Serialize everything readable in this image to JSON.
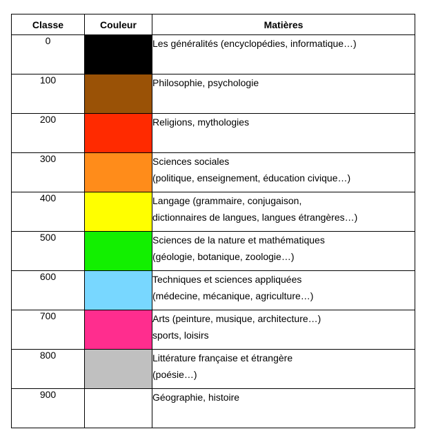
{
  "headers": {
    "classe": "Classe",
    "couleur": "Couleur",
    "matieres": "Matières"
  },
  "rows": [
    {
      "classe": "0",
      "color": "#000000",
      "line1": "Les généralités (encyclopédies, informatique…)",
      "line2": ""
    },
    {
      "classe": "100",
      "color": "#9a5206",
      "line1": "Philosophie, psychologie",
      "line2": ""
    },
    {
      "classe": "200",
      "color": "#ff2a00",
      "line1": "Religions, mythologies",
      "line2": ""
    },
    {
      "classe": "300",
      "color": "#ff8c1a",
      "line1": "Sciences sociales",
      "line2": "(politique, enseignement, éducation civique…)"
    },
    {
      "classe": "400",
      "color": "#ffff00",
      "line1": "Langage (grammaire, conjugaison,",
      "line2": "dictionnaires de langues, langues étrangères…)"
    },
    {
      "classe": "500",
      "color": "#12f000",
      "line1": "Sciences de la nature et mathématiques",
      "line2": "(géologie, botanique, zoologie…)"
    },
    {
      "classe": "600",
      "color": "#78d7ff",
      "line1": "Techniques et sciences appliquées",
      "line2": "(médecine, mécanique, agriculture…)"
    },
    {
      "classe": "700",
      "color": "#ff2d8e",
      "line1": "Arts (peinture, musique, architecture…)",
      "line2": "sports, loisirs"
    },
    {
      "classe": "800",
      "color": "#c0c0c0",
      "line1": "Littérature française et étrangère",
      "line2": "(poésie…)"
    },
    {
      "classe": "900",
      "color": "#ffffff",
      "line1": "Géographie, histoire",
      "line2": ""
    }
  ]
}
